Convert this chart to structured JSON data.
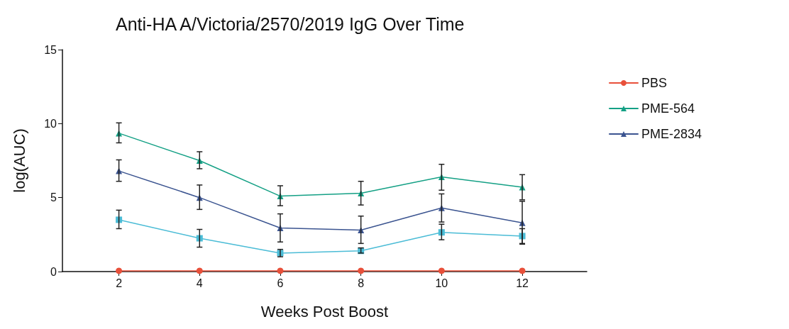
{
  "chart_data": {
    "type": "line",
    "title": "Anti-HA A/Victoria/2570/2019 IgG Over Time",
    "xlabel": "Weeks Post Boost",
    "ylabel": "log(AUC)",
    "x": [
      2,
      4,
      6,
      8,
      10,
      12
    ],
    "xlim": [
      0.6,
      13.6
    ],
    "xticks": [
      2,
      4,
      6,
      8,
      10,
      12
    ],
    "ylim": [
      0,
      15
    ],
    "yticks": [
      0,
      5,
      10,
      15
    ],
    "grid": false,
    "legend": "right",
    "line_style": "solid",
    "series": [
      {
        "name": "PBS",
        "color": "#e8503a",
        "marker": "circle",
        "values": [
          0.05,
          0.05,
          0.05,
          0.05,
          0.05,
          0.05
        ]
      },
      {
        "color": "#4bbcd6",
        "marker": "square",
        "values": [
          3.5,
          2.25,
          1.25,
          1.4,
          2.65,
          2.4
        ],
        "errors": [
          [
            2.9,
            4.15
          ],
          [
            1.65,
            2.85
          ],
          [
            1.0,
            1.5
          ],
          [
            1.25,
            1.6
          ],
          [
            2.15,
            3.2
          ],
          [
            1.9,
            2.9
          ]
        ]
      },
      {
        "name": "PME-564",
        "color": "#14a085",
        "marker": "triangle",
        "values": [
          9.35,
          7.5,
          5.1,
          5.3,
          6.4,
          5.7
        ],
        "errors": [
          [
            8.7,
            10.05
          ],
          [
            6.95,
            8.1
          ],
          [
            4.45,
            5.8
          ],
          [
            4.5,
            6.1
          ],
          [
            5.5,
            7.25
          ],
          [
            4.85,
            6.55
          ]
        ]
      },
      {
        "name": "PME-2834",
        "color": "#3b5490",
        "marker": "triangle",
        "values": [
          6.8,
          5.0,
          2.95,
          2.8,
          4.3,
          3.3
        ],
        "errors": [
          [
            6.1,
            7.55
          ],
          [
            4.2,
            5.85
          ],
          [
            2.0,
            3.9
          ],
          [
            1.9,
            3.75
          ],
          [
            3.35,
            5.25
          ],
          [
            1.85,
            4.75
          ]
        ]
      }
    ]
  }
}
